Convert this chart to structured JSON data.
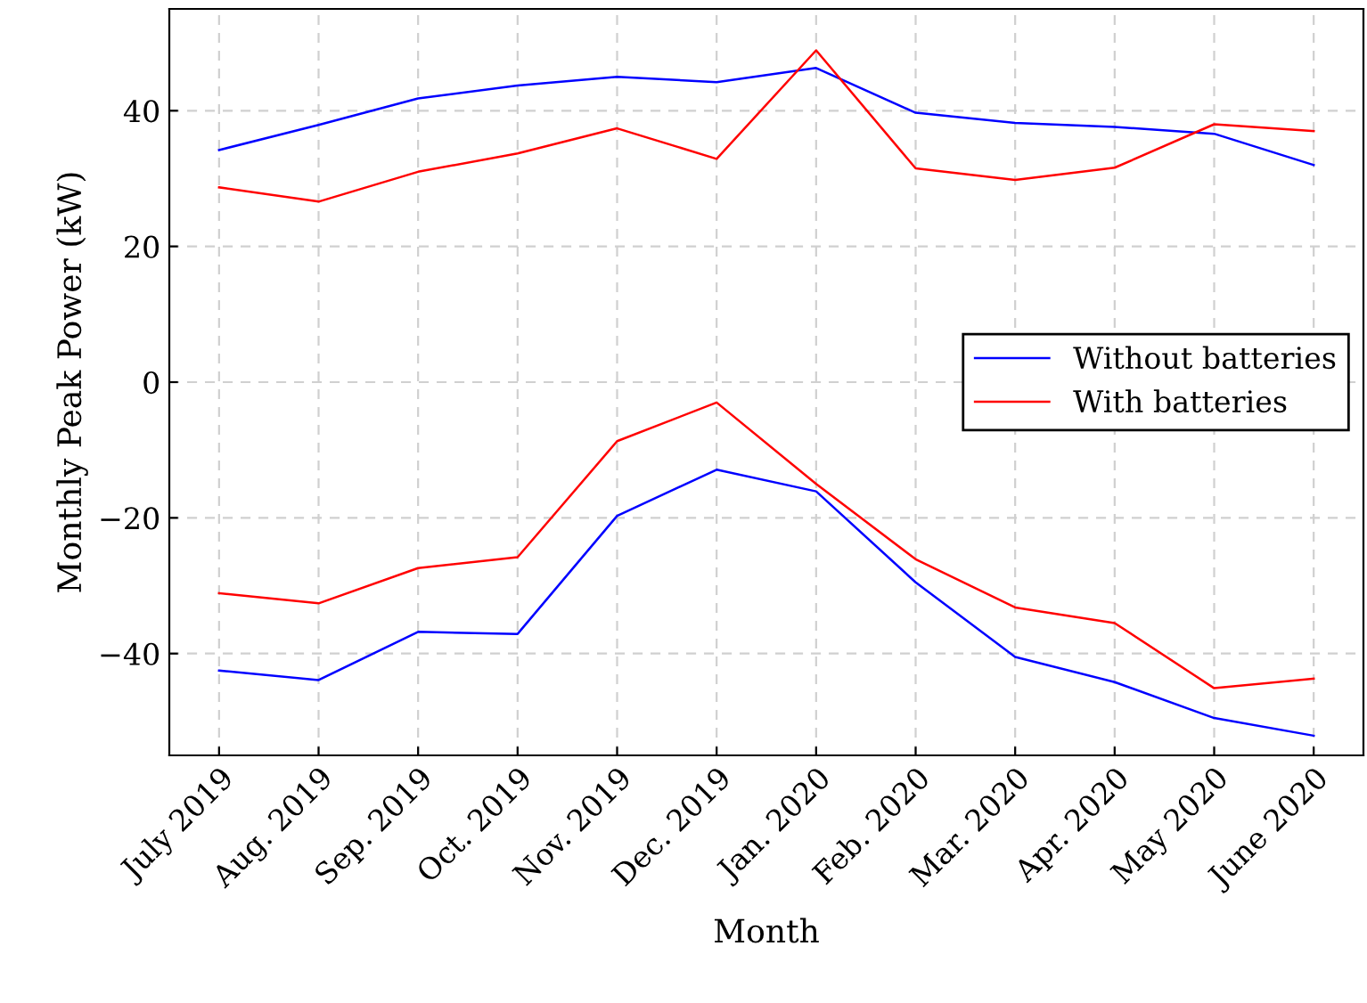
{
  "chart_data": {
    "type": "line",
    "xlabel": "Month",
    "ylabel": "Monthly Peak Power (kW)",
    "categories": [
      "July 2019",
      "Aug. 2019",
      "Sep. 2019",
      "Oct. 2019",
      "Nov. 2019",
      "Dec. 2019",
      "Jan. 2020",
      "Feb. 2020",
      "Mar. 2020",
      "Apr. 2020",
      "May 2020",
      "June 2020"
    ],
    "series": [
      {
        "name": "Without batteries",
        "color": "#0000ff",
        "values": [
          34.2,
          37.9,
          41.8,
          43.7,
          45.0,
          44.2,
          46.3,
          39.7,
          38.2,
          37.6,
          36.6,
          32.0
        ]
      },
      {
        "name": "With batteries",
        "color": "#ff0000",
        "values": [
          28.7,
          26.6,
          31.0,
          33.7,
          37.4,
          32.9,
          48.9,
          31.5,
          29.8,
          31.6,
          38.0,
          37.0
        ]
      },
      {
        "color": "#0000ff",
        "values": [
          -42.5,
          -43.9,
          -36.8,
          -37.1,
          -19.7,
          -12.9,
          -16.1,
          -29.5,
          -40.5,
          -44.2,
          -49.5,
          -52.1
        ]
      },
      {
        "color": "#ff0000",
        "values": [
          -31.1,
          -32.6,
          -27.4,
          -25.8,
          -8.7,
          -3.0,
          -15.0,
          -26.1,
          -33.2,
          -35.5,
          -45.1,
          -43.7
        ]
      }
    ],
    "ylim": [
      -55,
      55
    ],
    "yticks": [
      {
        "value": -40,
        "label": "−40"
      },
      {
        "value": -20,
        "label": "−20"
      },
      0,
      20,
      40
    ],
    "grid": true,
    "legend": "right",
    "line_style": "solid",
    "marker": "none"
  }
}
